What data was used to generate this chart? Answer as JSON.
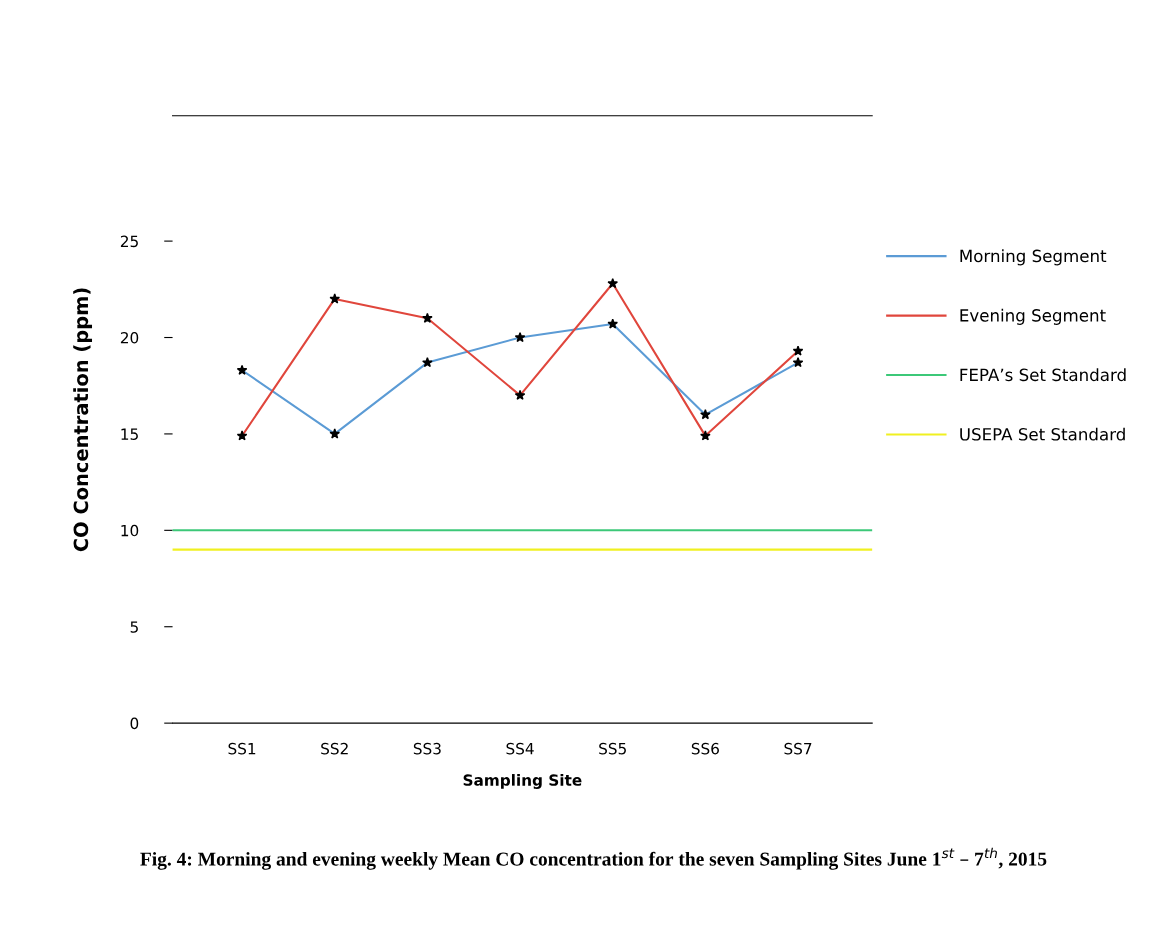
{
  "chart_data": {
    "type": "line",
    "xlabel": "Sampling Site",
    "ylabel": "CO Concentration (ppm)",
    "categories": [
      "SS1",
      "SS2",
      "SS3",
      "SS4",
      "SS5",
      "SS6",
      "SS7"
    ],
    "series": [
      {
        "name": "Morning Segment",
        "color": "#5b9bd5",
        "values": [
          18.3,
          15.0,
          18.7,
          20.0,
          20.7,
          16.0,
          18.7
        ]
      },
      {
        "name": "Evening Segment",
        "color": "#e0463c",
        "values": [
          14.9,
          22.0,
          21.0,
          17.0,
          22.8,
          14.9,
          19.3
        ]
      }
    ],
    "ref_lines": [
      {
        "axis": "y",
        "value": 10,
        "label": "FEPA’s Set Standard",
        "color": "#3cc878"
      },
      {
        "axis": "y",
        "value": 9,
        "label": "USEPA Set Standard",
        "color": "#f0f020"
      }
    ],
    "ylim": [
      0,
      31.5
    ],
    "yticks": [
      0,
      5,
      10,
      15,
      20,
      25
    ],
    "marker": "star",
    "grid": false,
    "legend": "right",
    "annotations": [
      "Fig. 4: Morning and evening weekly Mean CO concentration for the seven Sampling Sites June 1$^{st}$ – 7$^{th}$, 2015"
    ]
  }
}
